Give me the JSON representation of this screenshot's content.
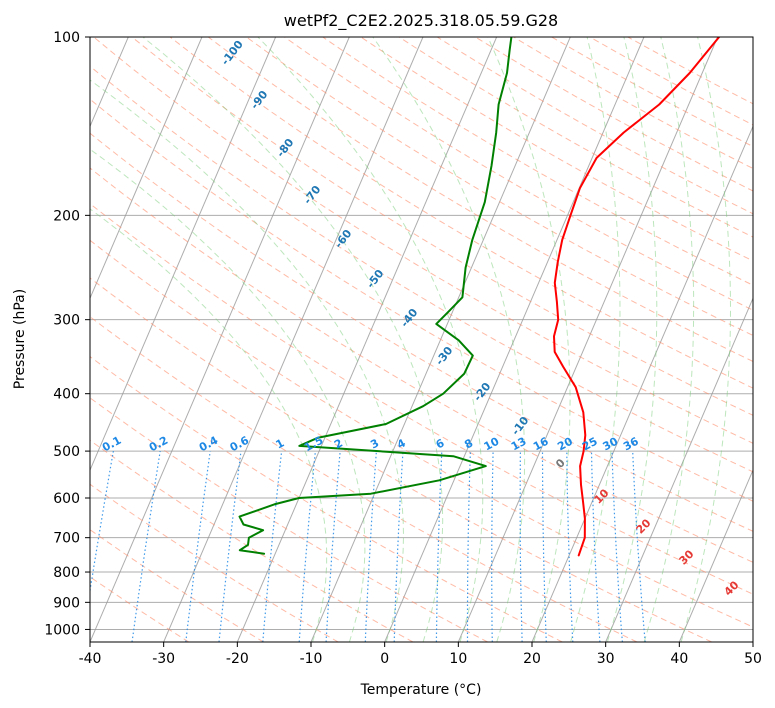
{
  "chart_data": {
    "type": "line",
    "title": "wetPf2_C2E2.2025.318.05.59.G28",
    "xlabel": "Temperature (°C)",
    "ylabel": "Pressure (hPa)",
    "xlim": [
      -40,
      50
    ],
    "ylim": [
      1050,
      100
    ],
    "y_scale": "log",
    "x_ticks": [
      -40,
      -30,
      -20,
      -10,
      0,
      10,
      20,
      30,
      40,
      50
    ],
    "y_ticks": [
      100,
      200,
      300,
      400,
      500,
      600,
      700,
      800,
      900,
      1000
    ],
    "grid": true,
    "skew": true,
    "series": [
      {
        "kind": "temperature",
        "color": "#ff0000",
        "points": [
          [
            21.3,
            750
          ],
          [
            21.1,
            700
          ],
          [
            20.0,
            650
          ],
          [
            18.8,
            610
          ],
          [
            17.5,
            570
          ],
          [
            16.3,
            530
          ],
          [
            15.9,
            500
          ],
          [
            15.2,
            470
          ],
          [
            13.6,
            430
          ],
          [
            11.1,
            390
          ],
          [
            8.2,
            360
          ],
          [
            6.2,
            340
          ],
          [
            5.2,
            320
          ],
          [
            4.8,
            300
          ],
          [
            3.6,
            280
          ],
          [
            2.2,
            260
          ],
          [
            1.4,
            240
          ],
          [
            0.7,
            220
          ],
          [
            0.4,
            200
          ],
          [
            0.1,
            180
          ],
          [
            0.6,
            160
          ],
          [
            2.8,
            145
          ],
          [
            6.0,
            130
          ],
          [
            8.3,
            115
          ],
          [
            10.2,
            100
          ]
        ]
      },
      {
        "kind": "dewpoint",
        "color": "#008000",
        "points": [
          [
            -21.5,
            745
          ],
          [
            -25.0,
            735
          ],
          [
            -24.2,
            720
          ],
          [
            -24.5,
            700
          ],
          [
            -23.0,
            680
          ],
          [
            -26.0,
            665
          ],
          [
            -27.0,
            645
          ],
          [
            -25.0,
            630
          ],
          [
            -23.0,
            615
          ],
          [
            -20.0,
            600
          ],
          [
            -10.5,
            590
          ],
          [
            -2.0,
            560
          ],
          [
            3.5,
            530
          ],
          [
            -1.5,
            510
          ],
          [
            -23.0,
            490
          ],
          [
            -21.0,
            475
          ],
          [
            -12.5,
            450
          ],
          [
            -8.5,
            420
          ],
          [
            -6.5,
            400
          ],
          [
            -4.8,
            370
          ],
          [
            -4.7,
            345
          ],
          [
            -7.5,
            325
          ],
          [
            -11.5,
            305
          ],
          [
            -10.5,
            290
          ],
          [
            -9.5,
            275
          ],
          [
            -10.8,
            245
          ],
          [
            -11.5,
            220
          ],
          [
            -12.0,
            190
          ],
          [
            -13.2,
            165
          ],
          [
            -14.5,
            145
          ],
          [
            -15.8,
            130
          ],
          [
            -16.5,
            115
          ],
          [
            -17.5,
            105
          ],
          [
            -18.0,
            100
          ]
        ]
      }
    ],
    "isotherm_labels": [
      "-100",
      "-90",
      "-80",
      "-70",
      "-60",
      "-50",
      "-40",
      "-30",
      "-20",
      "-10"
    ],
    "mixing_ratio_labels": [
      "0.1",
      "0.2",
      "0.4",
      "0.6",
      "1",
      "1.5",
      "2",
      "3",
      "4",
      "6",
      "8",
      "10",
      "13",
      "16",
      "20",
      "25",
      "30",
      "36"
    ],
    "moist_adiabat_labels": [
      "0",
      "10",
      "20",
      "30",
      "40"
    ],
    "colors": {
      "temperature": "#ff0000",
      "dewpoint": "#008000",
      "isotherm_label": "#1f77b4",
      "mixing_ratio": "#1e88e5",
      "moist_adiabat_label": "#e53935",
      "dry_adiabat": "#ff8c69",
      "moist_adiabat": "#7ccd7c",
      "grid": "#999999"
    }
  }
}
